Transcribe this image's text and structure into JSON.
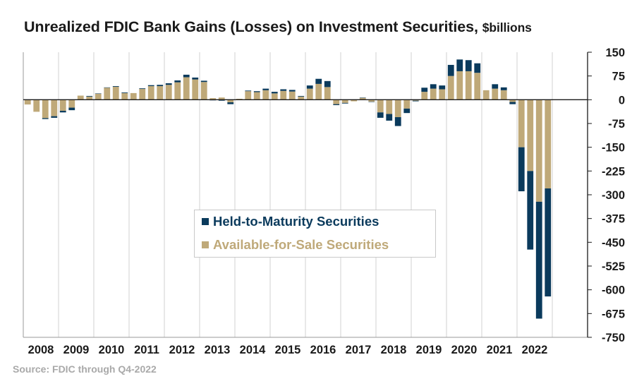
{
  "title": {
    "main": "Unrealized FDIC Bank Gains (Losses) on Investment Securities,",
    "units": "$billions"
  },
  "source": "Source: FDIC through Q4-2022",
  "colors": {
    "htm": "#0a3a5c",
    "afs": "#bfa979",
    "legend_htm_text": "#0a3a5c",
    "legend_afs_text": "#bfa979"
  },
  "chart_data": {
    "type": "bar",
    "stacked": true,
    "x_years": [
      "2008",
      "2009",
      "2010",
      "2011",
      "2012",
      "2013",
      "2014",
      "2015",
      "2016",
      "2017",
      "2018",
      "2019",
      "2020",
      "2021",
      "2022"
    ],
    "y_ticks": [
      "150",
      "75",
      "0",
      "-75",
      "-150",
      "-225",
      "-300",
      "-375",
      "-450",
      "-525",
      "-600",
      "-675",
      "-750"
    ],
    "ylim": [
      -750,
      150
    ],
    "y_axis_position": "right",
    "grid": "vertical-year-separators",
    "legend_position": "center",
    "quarters": [
      "Q1-2008",
      "Q2-2008",
      "Q3-2008",
      "Q4-2008",
      "Q1-2009",
      "Q2-2009",
      "Q3-2009",
      "Q4-2009",
      "Q1-2010",
      "Q2-2010",
      "Q3-2010",
      "Q4-2010",
      "Q1-2011",
      "Q2-2011",
      "Q3-2011",
      "Q4-2011",
      "Q1-2012",
      "Q2-2012",
      "Q3-2012",
      "Q4-2012",
      "Q1-2013",
      "Q2-2013",
      "Q3-2013",
      "Q4-2013",
      "Q1-2014",
      "Q2-2014",
      "Q3-2014",
      "Q4-2014",
      "Q1-2015",
      "Q2-2015",
      "Q3-2015",
      "Q4-2015",
      "Q1-2016",
      "Q2-2016",
      "Q3-2016",
      "Q4-2016",
      "Q1-2017",
      "Q2-2017",
      "Q3-2017",
      "Q4-2017",
      "Q1-2018",
      "Q2-2018",
      "Q3-2018",
      "Q4-2018",
      "Q1-2019",
      "Q2-2019",
      "Q3-2019",
      "Q4-2019",
      "Q1-2020",
      "Q2-2020",
      "Q3-2020",
      "Q4-2020",
      "Q1-2021",
      "Q2-2021",
      "Q3-2021",
      "Q4-2021",
      "Q1-2022",
      "Q2-2022",
      "Q3-2022",
      "Q4-2022"
    ],
    "series": [
      {
        "name": "Held-to-Maturity Securities",
        "values": [
          0,
          0,
          -3,
          -5,
          -5,
          -8,
          0,
          2,
          1,
          1,
          2,
          2,
          0,
          2,
          3,
          4,
          5,
          6,
          8,
          6,
          4,
          -2,
          -3,
          -6,
          -1,
          2,
          3,
          5,
          5,
          5,
          5,
          2,
          10,
          16,
          19,
          -3,
          -2,
          0,
          1,
          -1,
          -17,
          -21,
          -28,
          -14,
          -2,
          13,
          14,
          12,
          35,
          37,
          35,
          30,
          -1,
          14,
          9,
          -7,
          -139,
          -248,
          -369,
          -341
        ]
      },
      {
        "name": "Available-for-Sale Securities",
        "values": [
          -15,
          -38,
          -58,
          -52,
          -35,
          -25,
          13,
          10,
          19,
          38,
          41,
          21,
          21,
          34,
          43,
          43,
          47,
          55,
          71,
          64,
          56,
          5,
          7,
          -8,
          3,
          27,
          24,
          30,
          20,
          28,
          26,
          10,
          35,
          50,
          40,
          -14,
          -10,
          -5,
          6,
          -6,
          -40,
          -45,
          -55,
          -28,
          -3,
          25,
          35,
          33,
          75,
          90,
          90,
          85,
          30,
          35,
          30,
          -7,
          -150,
          -225,
          -322,
          -280
        ]
      }
    ]
  }
}
